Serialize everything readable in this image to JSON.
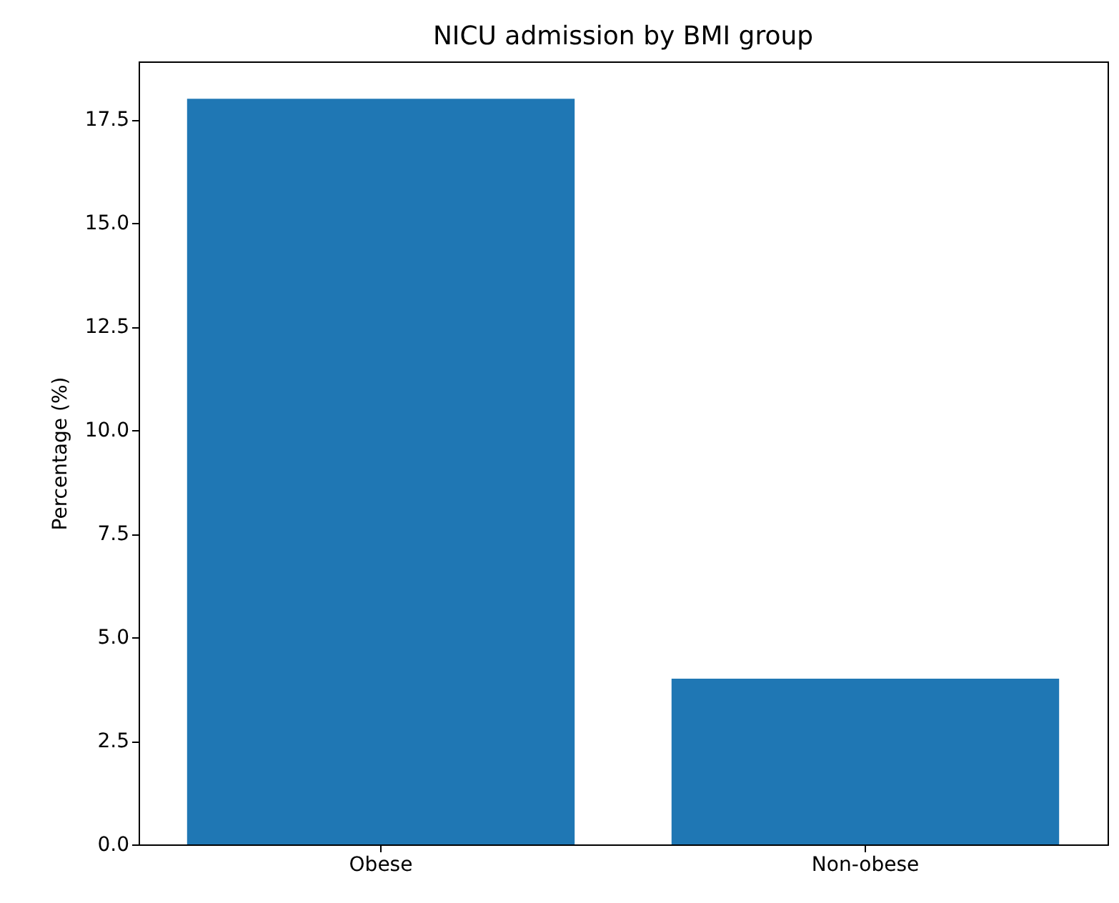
{
  "chart_data": {
    "type": "bar",
    "title": "NICU admission by BMI group",
    "ylabel": "Percentage (%)",
    "categories": [
      "Obese",
      "Non-obese"
    ],
    "series": [
      {
        "color": "#1f77b4",
        "values": [
          18,
          4
        ]
      }
    ],
    "ylim": [
      0,
      18.9
    ],
    "yticks": [
      {
        "value": 0,
        "label": "0.0"
      },
      {
        "value": 2.5,
        "label": "2.5"
      },
      {
        "value": 5,
        "label": "5.0"
      },
      {
        "value": 7.5,
        "label": "7.5"
      },
      {
        "value": 10,
        "label": "10.0"
      },
      {
        "value": 12.5,
        "label": "12.5"
      },
      {
        "value": 15,
        "label": "15.0"
      },
      {
        "value": 17.5,
        "label": "17.5"
      }
    ],
    "grid": false
  }
}
